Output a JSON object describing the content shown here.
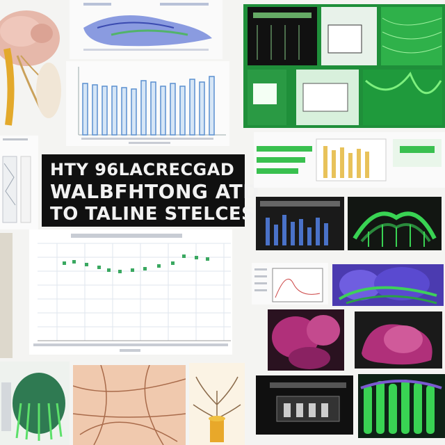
{
  "poster": {
    "title_lines": [
      "HTY 96LACRECGAD",
      "WALBFHTONG ATD",
      "TO TALINE STELCES"
    ]
  },
  "colors": {
    "background": "#f4f4f2",
    "title_bg": "#101010",
    "green_panel": "#1f8f3a",
    "bright_green": "#39d353",
    "magenta": "#b0307a",
    "blue_bars": "#5a8fd0",
    "purple": "#4b3bb0"
  },
  "icons": {
    "left_scribble": "plant-illustration-icon",
    "screens": "software-window-icon"
  }
}
